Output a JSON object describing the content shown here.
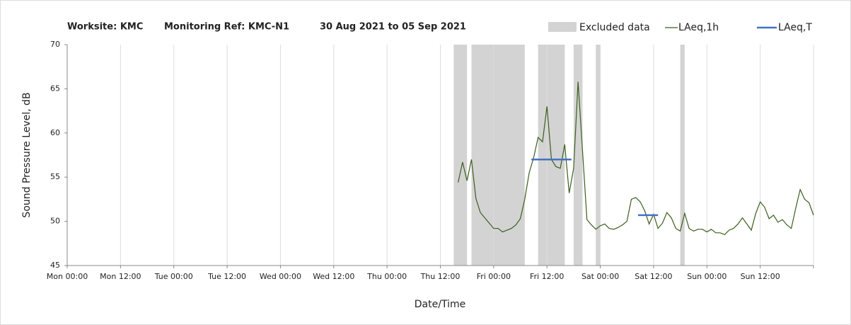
{
  "chart_data": {
    "type": "line",
    "title_parts": [
      "Worksite: KMC",
      "Monitoring Ref: KMC-N1",
      "30 Aug 2021 to 05 Sep 2021"
    ],
    "x_label": "Date/Time",
    "y_label": "Sound Pressure Level, dB",
    "xlim": [
      0,
      168
    ],
    "xticks": [
      {
        "value": 0,
        "label": "Mon 00:00"
      },
      {
        "value": 12,
        "label": "Mon 12:00"
      },
      {
        "value": 24,
        "label": "Tue 00:00"
      },
      {
        "value": 36,
        "label": "Tue 12:00"
      },
      {
        "value": 48,
        "label": "Wed 00:00"
      },
      {
        "value": 60,
        "label": "Wed 12:00"
      },
      {
        "value": 72,
        "label": "Thu 00:00"
      },
      {
        "value": 84,
        "label": "Thu 12:00"
      },
      {
        "value": 96,
        "label": "Fri 00:00"
      },
      {
        "value": 108,
        "label": "Fri 12:00"
      },
      {
        "value": 120,
        "label": "Sat 00:00"
      },
      {
        "value": 132,
        "label": "Sat 12:00"
      },
      {
        "value": 144,
        "label": "Sun 00:00"
      },
      {
        "value": 156,
        "label": "Sun 12:00"
      }
    ],
    "ylim": [
      45,
      70
    ],
    "yticks": [
      45,
      50,
      55,
      60,
      65,
      70
    ],
    "grid": true,
    "excluded": {
      "name": "Excluded data",
      "color": "#d3d3d3",
      "ranges": [
        [
          87,
          90
        ],
        [
          91,
          103
        ],
        [
          106,
          112
        ],
        [
          114,
          116
        ],
        [
          119,
          120
        ],
        [
          138,
          139
        ]
      ]
    },
    "series": [
      {
        "name": "LAeq,1h",
        "color": "#3b5e1e",
        "x": [
          88,
          89,
          90,
          91,
          92,
          93,
          94,
          95,
          96,
          97,
          98,
          99,
          100,
          101,
          102,
          103,
          104,
          105,
          106,
          107,
          108,
          109,
          110,
          111,
          112,
          113,
          114,
          115,
          116,
          117,
          118,
          119,
          120,
          121,
          122,
          123,
          124,
          125,
          126,
          127,
          128,
          129,
          130,
          131,
          132,
          133,
          134,
          135,
          136,
          137,
          138,
          139,
          140,
          141,
          142,
          143,
          144,
          145,
          146,
          147,
          148,
          149,
          150,
          151,
          152,
          153,
          154,
          155,
          156,
          157,
          158,
          159,
          160,
          161,
          162,
          163,
          164,
          165,
          166,
          167,
          168
        ],
        "values": [
          54.4,
          56.7,
          54.6,
          57.0,
          52.6,
          51.0,
          50.4,
          49.8,
          49.2,
          49.2,
          48.8,
          49.0,
          49.2,
          49.6,
          50.3,
          52.5,
          55.5,
          57.2,
          59.5,
          59.0,
          63.0,
          57.0,
          56.2,
          56.0,
          58.7,
          53.2,
          56.0,
          65.8,
          58.0,
          50.2,
          49.6,
          49.1,
          49.5,
          49.7,
          49.2,
          49.1,
          49.3,
          49.6,
          50.0,
          52.5,
          52.7,
          52.2,
          51.2,
          49.7,
          50.8,
          49.2,
          49.8,
          51.0,
          50.4,
          49.2,
          48.9,
          50.9,
          49.2,
          48.9,
          49.1,
          49.1,
          48.8,
          49.1,
          48.7,
          48.7,
          48.5,
          49.0,
          49.2,
          49.7,
          50.4,
          49.7,
          49.0,
          50.9,
          52.2,
          51.6,
          50.3,
          50.7,
          49.9,
          50.2,
          49.6,
          49.2,
          51.5,
          53.6,
          52.5,
          52.1,
          50.7
        ]
      }
    ],
    "period": {
      "name": "LAeq,T",
      "color": "#4472c4",
      "segments": [
        {
          "x": [
            104.5,
            113.5
          ],
          "value": 57.0
        },
        {
          "x": [
            128.5,
            133
          ],
          "value": 50.7
        }
      ]
    }
  }
}
